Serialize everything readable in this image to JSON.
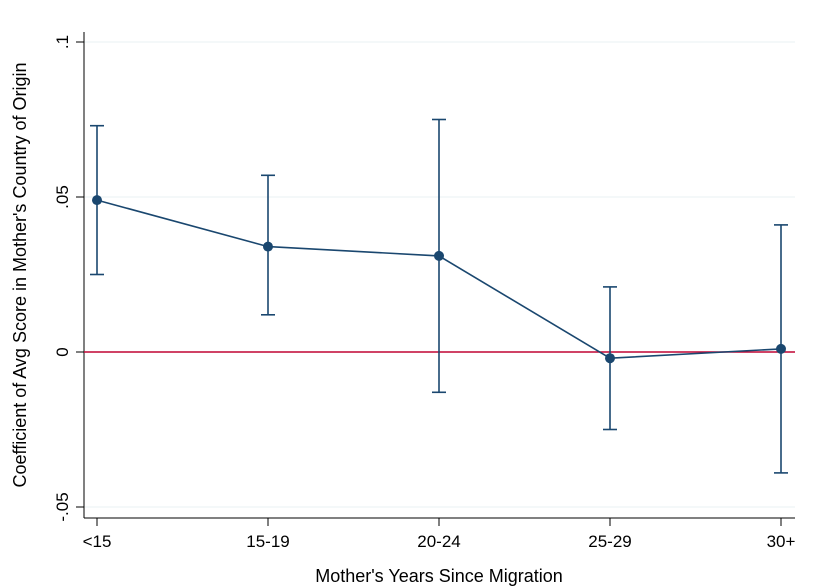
{
  "chart_data": {
    "type": "scatter",
    "title": "",
    "xlabel": "Mother's Years Since Migration",
    "ylabel": "Coefficient of Avg Score in Mother's Country of Origin",
    "categories": [
      "<15",
      "15-19",
      "20-24",
      "25-29",
      "30+"
    ],
    "series": [
      {
        "values": [
          0.049,
          0.034,
          0.031,
          -0.002,
          0.001
        ],
        "ci_low": [
          0.025,
          0.012,
          -0.013,
          -0.025,
          -0.039
        ],
        "ci_high": [
          0.073,
          0.057,
          0.075,
          0.021,
          0.041
        ]
      }
    ],
    "yticks": [
      -0.05,
      0,
      0.05,
      0.1
    ],
    "ytick_labels": [
      "-.05",
      "0",
      ".05",
      ".1"
    ],
    "ylim": [
      -0.052,
      0.1
    ],
    "grid": true,
    "reference_line": 0,
    "colors": {
      "series": "#1a476f",
      "reference": "#c10534",
      "grid": "#eaf2f3"
    }
  }
}
